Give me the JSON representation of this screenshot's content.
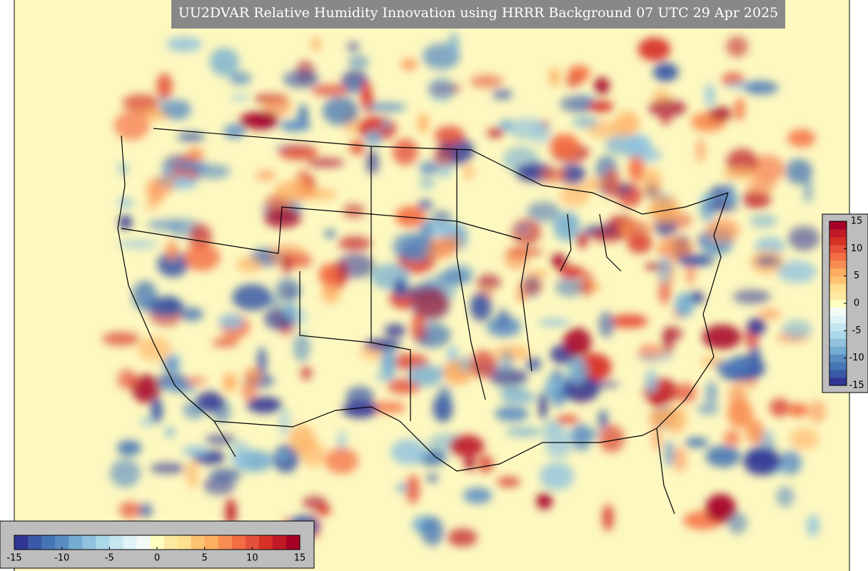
{
  "title": "UU2DVAR Relative Humidity Innovation using HRRR Background 07 UTC 29 Apr 2025",
  "colorbars": [
    {
      "orientation": "horizontal",
      "lim": [
        -15,
        15
      ],
      "ticks": [
        -15,
        -10,
        -5,
        0,
        5,
        10,
        15
      ]
    },
    {
      "orientation": "vertical",
      "lim": [
        -15,
        15
      ],
      "ticks": [
        15,
        10,
        5,
        0,
        -5,
        -10,
        -15
      ]
    }
  ],
  "colors": [
    "#313695",
    "#3a59a6",
    "#4575b4",
    "#5b8dc2",
    "#74add1",
    "#91c2de",
    "#abd9e9",
    "#c6e6f0",
    "#e0f3f8",
    "#f4faf6",
    "#ffffbf",
    "#fee9a0",
    "#fee090",
    "#fdc272",
    "#fdae61",
    "#f88d52",
    "#f46d43",
    "#e4503a",
    "#d73027",
    "#c01a27",
    "#a50026"
  ]
}
